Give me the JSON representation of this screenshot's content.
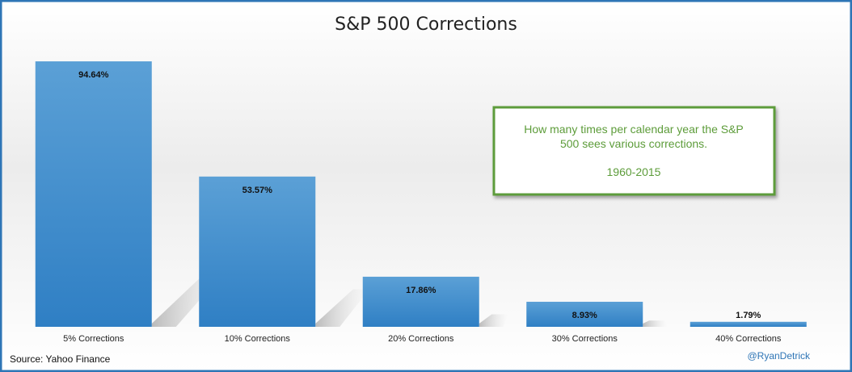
{
  "chart_data": {
    "type": "bar",
    "title": "S&P 500 Corrections",
    "categories": [
      "5% Corrections",
      "10% Corrections",
      "20% Corrections",
      "30% Corrections",
      "40% Corrections"
    ],
    "values": [
      94.64,
      53.57,
      17.86,
      8.93,
      1.79
    ],
    "data_labels": [
      "94.64%",
      "53.57%",
      "17.86%",
      "8.93%",
      "1.79%"
    ],
    "xlabel": "",
    "ylabel": "",
    "ylim": [
      0,
      100
    ],
    "grid": false,
    "bar_color": "#3a87c9",
    "annotation": {
      "line1": "How many times per calendar year the S&P",
      "line2": "500 sees various corrections.",
      "line3": "1960-2015",
      "color": "#5d9c3a"
    },
    "source": "Source:  Yahoo Finance",
    "credit": "@RyanDetrick"
  }
}
